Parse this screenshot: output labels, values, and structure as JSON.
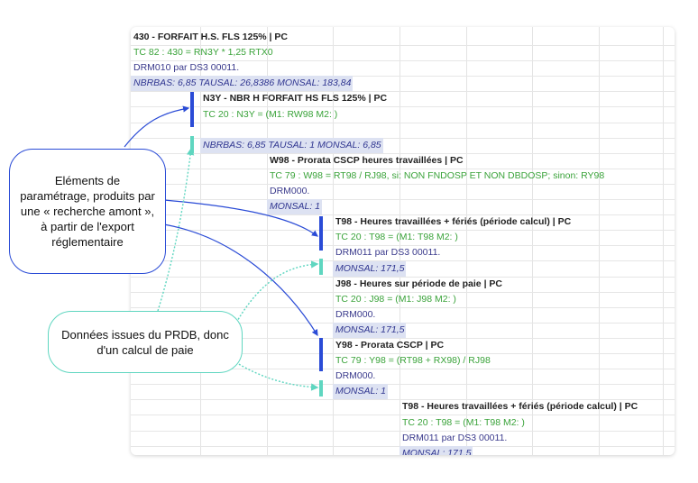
{
  "rows": [
    {
      "text": "430 - FORFAIT H.S. FLS 125% | PC",
      "kind": "title",
      "level": 0
    },
    {
      "text": "TC 82 : 430 = RN3Y * 1,25 RTX0",
      "kind": "formula",
      "level": 0
    },
    {
      "text": "DRM010 par DS3 00011.",
      "kind": "drm",
      "level": 0
    },
    {
      "text": "NBRBAS: 6,85 TAUSAL: 26,8386 MONSAL: 183,84",
      "kind": "val",
      "level": 0
    },
    {
      "text": "N3Y - NBR H FORFAIT HS FLS 125% | PC",
      "kind": "title",
      "level": 1
    },
    {
      "text": "TC 20 : N3Y = (M1: RW98 M2:  )",
      "kind": "formula",
      "level": 1
    },
    {
      "text": "",
      "kind": "blank",
      "level": 1
    },
    {
      "text": "NBRBAS: 6,85 TAUSAL: 1 MONSAL: 6,85",
      "kind": "val",
      "level": 1
    },
    {
      "text": "W98 - Prorata CSCP heures travaillées | PC",
      "kind": "title",
      "level": 2
    },
    {
      "text": "TC 79 : W98 = RT98 / RJ98, si: NON FNDOSP ET NON DBDOSP; sinon: RY98",
      "kind": "formula",
      "level": 2
    },
    {
      "text": "DRM000.",
      "kind": "drm",
      "level": 2
    },
    {
      "text": "MONSAL: 1",
      "kind": "val",
      "level": 2
    },
    {
      "text": "T98 - Heures travaillées + fériés (période calcul) | PC",
      "kind": "title",
      "level": 3
    },
    {
      "text": "TC 20 : T98 = (M1: T98 M2:  )",
      "kind": "formula",
      "level": 3
    },
    {
      "text": "DRM011 par DS3 00011.",
      "kind": "drm",
      "level": 3
    },
    {
      "text": "MONSAL: 171,5",
      "kind": "val",
      "level": 3
    },
    {
      "text": "J98 - Heures sur période de paie | PC",
      "kind": "title",
      "level": 3
    },
    {
      "text": "TC 20 : J98 = (M1: J98 M2:  )",
      "kind": "formula",
      "level": 3
    },
    {
      "text": "DRM000.",
      "kind": "drm",
      "level": 3
    },
    {
      "text": "MONSAL: 171,5",
      "kind": "val",
      "level": 3
    },
    {
      "text": "Y98 - Prorata CSCP | PC",
      "kind": "title",
      "level": 3
    },
    {
      "text": "TC 79 : Y98 = (RT98 + RX98) / RJ98",
      "kind": "formula",
      "level": 3
    },
    {
      "text": "DRM000.",
      "kind": "drm",
      "level": 3
    },
    {
      "text": "MONSAL: 1",
      "kind": "val",
      "level": 3
    },
    {
      "text": "T98 - Heures travaillées + fériés (période calcul) | PC",
      "kind": "title",
      "level": 4
    },
    {
      "text": "TC 20 : T98 = (M1: T98 M2:  )",
      "kind": "formula",
      "level": 4
    },
    {
      "text": "DRM011 par DS3 00011.",
      "kind": "drm",
      "level": 4
    },
    {
      "text": "MONSAL: 171.5",
      "kind": "val",
      "level": 4
    }
  ],
  "callouts": {
    "parametrage": "Eléments de paramétrage, produits par une « recherche amont », à partir de l'export réglementaire",
    "prdb": "Données issues du PRDB, donc d'un calcul de paie"
  },
  "colors": {
    "parametrage_arrow": "#2a4bd6",
    "prdb_arrow": "#5fd6c0",
    "formula": "#3aa33a",
    "value_highlight": "#dde2f2"
  }
}
